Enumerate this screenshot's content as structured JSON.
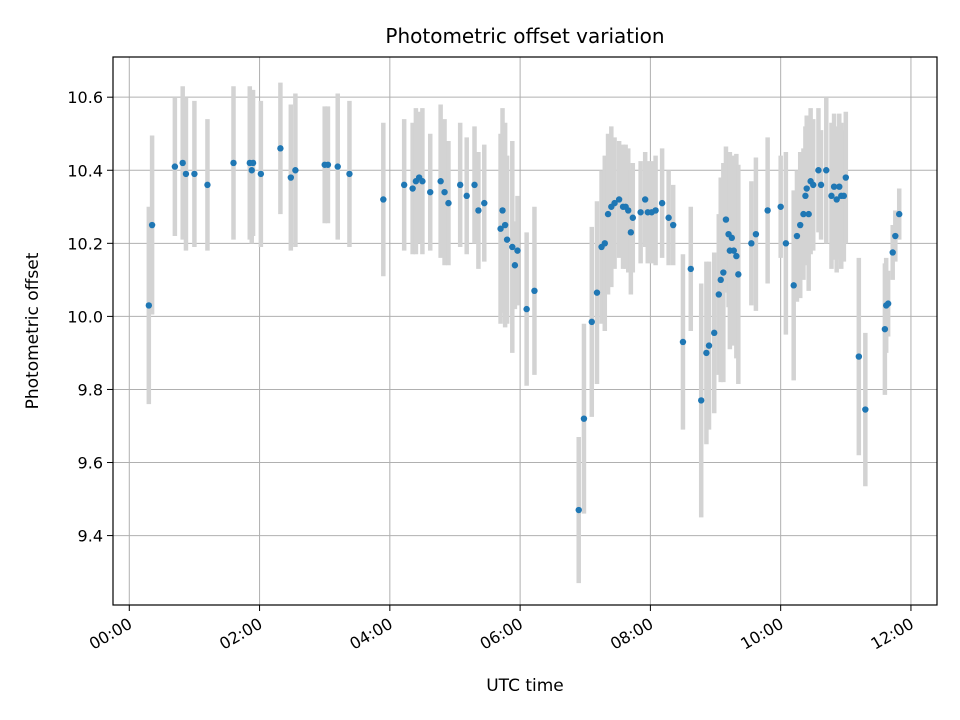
{
  "chart_data": {
    "type": "scatter",
    "title": "Photometric offset variation",
    "xlabel": "UTC time",
    "ylabel": "Photometric offset",
    "x_tick_labels": [
      "00:00",
      "02:00",
      "04:00",
      "06:00",
      "08:00",
      "10:00",
      "12:00"
    ],
    "x_tick_hours": [
      0,
      2,
      4,
      6,
      8,
      10,
      12
    ],
    "y_ticks": [
      9.4,
      9.6,
      9.8,
      10.0,
      10.2,
      10.4,
      10.6
    ],
    "y_tick_labels": [
      "9.4",
      "9.6",
      "9.8",
      "10.0",
      "10.2",
      "10.4",
      "10.6"
    ],
    "xlim_hours": [
      -0.25,
      12.4
    ],
    "ylim": [
      9.21,
      10.71
    ],
    "grid": true,
    "colors": {
      "point": "#1f77b4",
      "errorbar": "#d3d3d3",
      "grid": "#b0b0b0"
    },
    "series": [
      {
        "x_hours": [
          0.3,
          0.35,
          0.7,
          0.82,
          0.87,
          1.0,
          1.2,
          1.6,
          1.85,
          1.88,
          1.9,
          2.02,
          2.32,
          2.48,
          2.55,
          3.0,
          3.05,
          3.2,
          3.38,
          3.9,
          4.22,
          4.35,
          4.4,
          4.45,
          4.5,
          4.62,
          4.78,
          4.84,
          4.9,
          5.08,
          5.18,
          5.3,
          5.36,
          5.45,
          5.7,
          5.73,
          5.77,
          5.8,
          5.88,
          5.92,
          5.96,
          6.1,
          6.22,
          6.9,
          6.98,
          7.1,
          7.18,
          7.25,
          7.3,
          7.35,
          7.4,
          7.45,
          7.52,
          7.58,
          7.62,
          7.66,
          7.7,
          7.73,
          7.85,
          7.92,
          7.96,
          8.02,
          8.08,
          8.18,
          8.28,
          8.35,
          8.5,
          8.62,
          8.78,
          8.86,
          8.9,
          8.98,
          9.05,
          9.08,
          9.12,
          9.16,
          9.2,
          9.22,
          9.25,
          9.28,
          9.32,
          9.35,
          9.55,
          9.62,
          9.8,
          10.0,
          10.08,
          10.2,
          10.25,
          10.3,
          10.35,
          10.38,
          10.4,
          10.43,
          10.46,
          10.5,
          10.58,
          10.62,
          10.7,
          10.78,
          10.82,
          10.86,
          10.9,
          10.93,
          10.97,
          11.0,
          11.2,
          11.3,
          11.6,
          11.62,
          11.65,
          11.72,
          11.76,
          11.82
        ],
        "y": [
          10.03,
          10.25,
          10.41,
          10.42,
          10.39,
          10.39,
          10.36,
          10.42,
          10.42,
          10.4,
          10.42,
          10.39,
          10.46,
          10.38,
          10.4,
          10.415,
          10.415,
          10.41,
          10.39,
          10.32,
          10.36,
          10.35,
          10.37,
          10.38,
          10.37,
          10.34,
          10.37,
          10.34,
          10.31,
          10.36,
          10.33,
          10.36,
          10.29,
          10.31,
          10.24,
          10.29,
          10.25,
          10.21,
          10.19,
          10.14,
          10.18,
          10.02,
          10.07,
          9.47,
          9.72,
          9.985,
          10.065,
          10.19,
          10.2,
          10.28,
          10.3,
          10.31,
          10.32,
          10.3,
          10.3,
          10.29,
          10.23,
          10.27,
          10.285,
          10.32,
          10.285,
          10.285,
          10.29,
          10.31,
          10.27,
          10.25,
          9.93,
          10.13,
          9.77,
          9.9,
          9.92,
          9.955,
          10.06,
          10.1,
          10.12,
          10.265,
          10.225,
          10.18,
          10.215,
          10.18,
          10.165,
          10.115,
          10.2,
          10.225,
          10.29,
          10.3,
          10.2,
          10.085,
          10.22,
          10.25,
          10.28,
          10.33,
          10.35,
          10.28,
          10.37,
          10.36,
          10.4,
          10.36,
          10.4,
          10.33,
          10.355,
          10.32,
          10.355,
          10.33,
          10.33,
          10.38,
          9.89,
          9.745,
          9.965,
          10.03,
          10.035,
          10.175,
          10.22,
          10.28
        ],
        "y_err": [
          0.27,
          0.245,
          0.19,
          0.21,
          0.21,
          0.2,
          0.18,
          0.21,
          0.21,
          0.2,
          0.2,
          0.2,
          0.18,
          0.2,
          0.21,
          0.16,
          0.16,
          0.2,
          0.2,
          0.21,
          0.18,
          0.18,
          0.2,
          0.18,
          0.2,
          0.16,
          0.21,
          0.2,
          0.17,
          0.17,
          0.16,
          0.16,
          0.16,
          0.16,
          0.26,
          0.28,
          0.28,
          0.23,
          0.29,
          0.12,
          0.15,
          0.21,
          0.23,
          0.2,
          0.26,
          0.26,
          0.25,
          0.21,
          0.24,
          0.22,
          0.22,
          0.18,
          0.16,
          0.17,
          0.17,
          0.17,
          0.17,
          0.15,
          0.14,
          0.13,
          0.14,
          0.14,
          0.15,
          0.15,
          0.13,
          0.11,
          0.24,
          0.17,
          0.32,
          0.25,
          0.23,
          0.22,
          0.22,
          0.28,
          0.3,
          0.2,
          0.2,
          0.27,
          0.21,
          0.26,
          0.28,
          0.3,
          0.17,
          0.21,
          0.2,
          0.14,
          0.25,
          0.26,
          0.18,
          0.2,
          0.18,
          0.19,
          0.2,
          0.21,
          0.2,
          0.18,
          0.17,
          0.15,
          0.2,
          0.2,
          0.2,
          0.2,
          0.2,
          0.2,
          0.18,
          0.18,
          0.27,
          0.21,
          0.18,
          0.13,
          0.09,
          0.075,
          0.07,
          0.07
        ]
      }
    ]
  }
}
